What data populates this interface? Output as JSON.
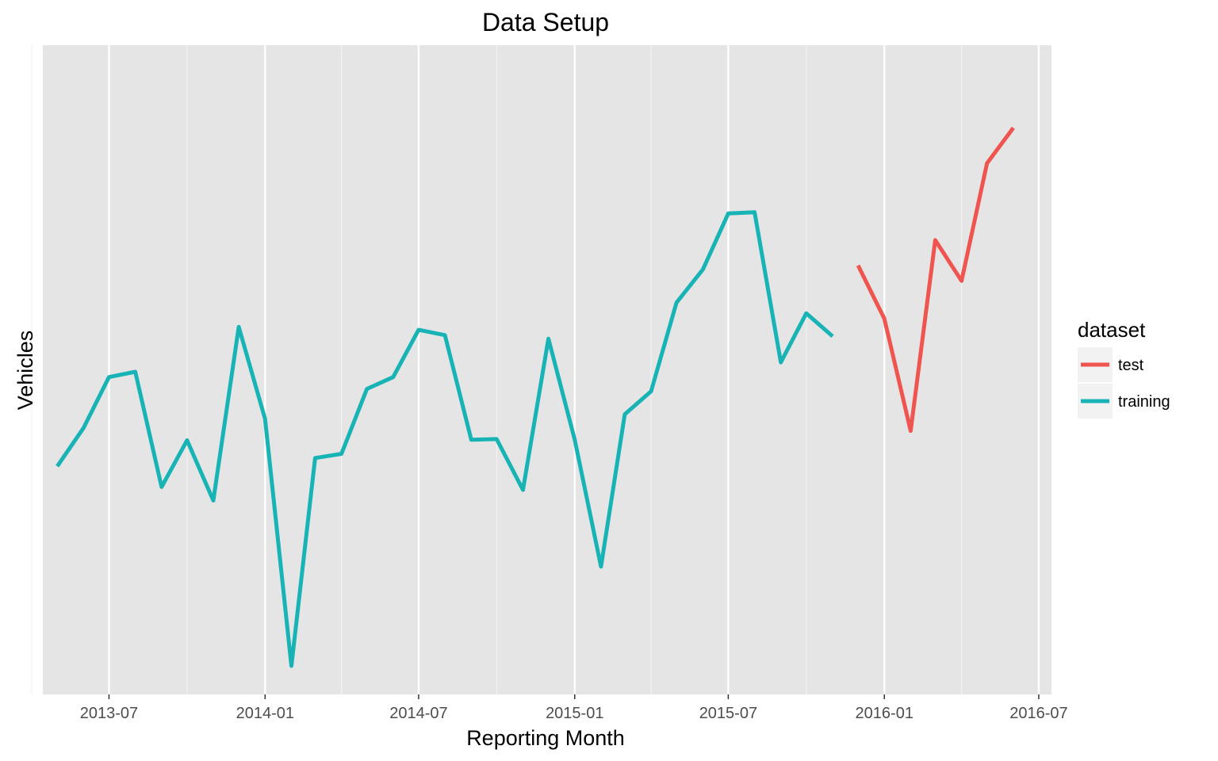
{
  "chart_data": {
    "type": "line",
    "title": "Data Setup",
    "xlabel": "Reporting Month",
    "ylabel": "Vehicles",
    "x_axis": {
      "kind": "date",
      "range": [
        "2013-04-14",
        "2016-07-16"
      ],
      "ticks": [
        "2013-07",
        "2014-01",
        "2014-07",
        "2015-01",
        "2015-07",
        "2016-01",
        "2016-07"
      ],
      "minor_gridlines": [
        "2013-04",
        "2013-10",
        "2014-04",
        "2014-10",
        "2015-04",
        "2015-10",
        "2016-04"
      ]
    },
    "y_axis": {
      "tick_labels": "none",
      "ylim": [
        0,
        100
      ]
    },
    "grid": true,
    "legend": {
      "title": "dataset",
      "position": "right",
      "entries": [
        {
          "label": "test",
          "color": "#f0544f"
        },
        {
          "label": "training",
          "color": "#17b3b5"
        }
      ]
    },
    "series": [
      {
        "name": "training",
        "color": "#17b3b5",
        "x": [
          "2013-05",
          "2013-06",
          "2013-07",
          "2013-08",
          "2013-09",
          "2013-10",
          "2013-11",
          "2013-12",
          "2014-01",
          "2014-02",
          "2014-03",
          "2014-04",
          "2014-05",
          "2014-06",
          "2014-07",
          "2014-08",
          "2014-09",
          "2014-10",
          "2014-11",
          "2014-12",
          "2015-01",
          "2015-02",
          "2015-03",
          "2015-04",
          "2015-05",
          "2015-06",
          "2015-07",
          "2015-08",
          "2015-09",
          "2015-10",
          "2015-11"
        ],
        "y": [
          33.8,
          40.3,
          48.9,
          49.8,
          30.3,
          38.2,
          28.0,
          57.4,
          41.8,
          0,
          35.2,
          35.9,
          46.9,
          48.9,
          56.9,
          56.0,
          38.3,
          38.4,
          29.8,
          55.4,
          38.3,
          16.8,
          42.6,
          46.5,
          61.5,
          67.1,
          76.6,
          76.8,
          51.4,
          59.7,
          55.8
        ]
      },
      {
        "name": "test",
        "color": "#f0544f",
        "x": [
          "2015-12",
          "2016-01",
          "2016-02",
          "2016-03",
          "2016-04",
          "2016-05",
          "2016-06"
        ],
        "y": [
          67.8,
          58.8,
          39.8,
          72.1,
          65.2,
          85.1,
          91.1
        ]
      }
    ]
  }
}
